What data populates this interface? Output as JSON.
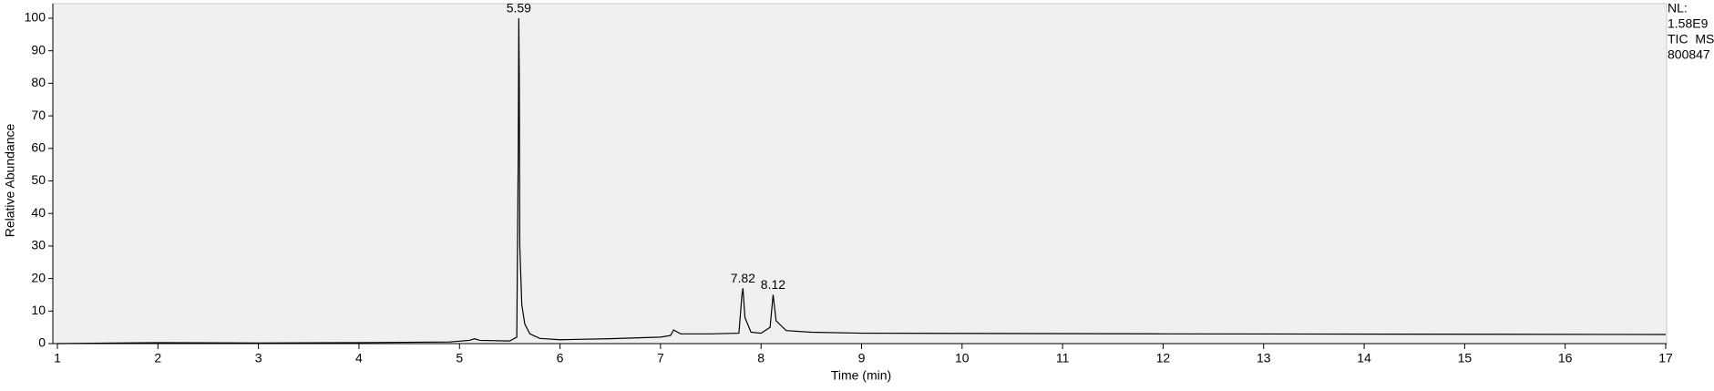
{
  "chart_data": {
    "type": "line",
    "x_label": "Time (min)",
    "y_label": "Relative Abundance",
    "info": [
      "NL:",
      "1.58E9",
      "TIC  MS",
      "800847"
    ],
    "x": [
      1.0,
      2.0,
      3.0,
      4.0,
      4.9,
      5.1,
      5.15,
      5.2,
      5.5,
      5.57,
      5.585,
      5.59,
      5.595,
      5.6,
      5.62,
      5.65,
      5.7,
      5.8,
      6.0,
      6.5,
      7.0,
      7.1,
      7.13,
      7.2,
      7.5,
      7.78,
      7.81,
      7.82,
      7.84,
      7.9,
      8.0,
      8.09,
      8.12,
      8.15,
      8.25,
      8.5,
      9.0,
      12.0,
      17.0
    ],
    "series": [
      {
        "name": "TIC",
        "color": "#000000",
        "values": [
          0,
          0.3,
          0.2,
          0.3,
          0.5,
          1.0,
          1.5,
          1.0,
          0.8,
          2,
          60,
          100,
          82,
          30,
          12,
          6,
          3,
          1.6,
          1.2,
          1.5,
          2.0,
          2.5,
          4.2,
          3,
          3,
          3.2,
          15,
          17,
          8,
          3.5,
          3.2,
          5,
          15,
          7,
          4,
          3.5,
          3.2,
          3,
          2.8
        ]
      }
    ],
    "annotations": [
      {
        "x": 5.59,
        "y": 100
      },
      {
        "x": 7.82,
        "y": 17
      },
      {
        "x": 8.12,
        "y": 15
      }
    ],
    "xlim": [
      1,
      17
    ],
    "ylim": [
      0,
      100
    ],
    "xticks": [
      1,
      2,
      3,
      4,
      5,
      6,
      7,
      8,
      9,
      10,
      11,
      12,
      13,
      14,
      15,
      16,
      17
    ],
    "yticks": [
      0,
      10,
      20,
      30,
      40,
      50,
      60,
      70,
      80,
      90,
      100
    ],
    "plot_background": "#f0f0f0"
  }
}
